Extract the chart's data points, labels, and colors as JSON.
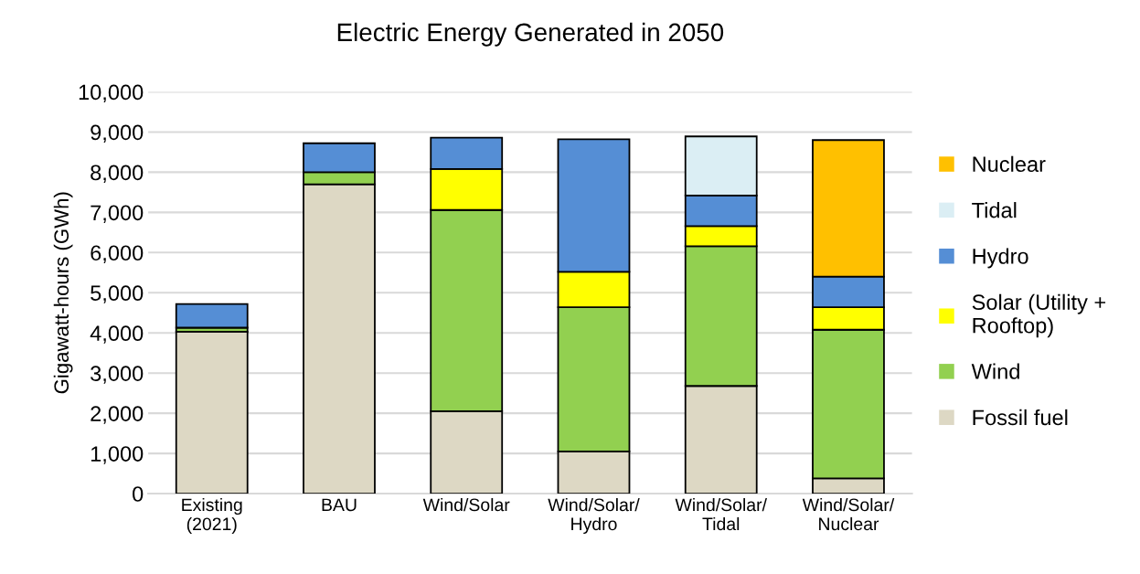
{
  "chart_data": {
    "type": "bar",
    "stacked": true,
    "title": "Electric Energy Generated in 2050",
    "ylabel": "Gigawatt-hours (GWh)",
    "categories": [
      "Existing\n(2021)",
      "BAU",
      "Wind/Solar",
      "Wind/Solar/\nHydro",
      "Wind/Solar/\nTidal",
      "Wind/Solar/\nNuclear"
    ],
    "series": [
      {
        "name": "Fossil fuel",
        "color": "#ddd8c4",
        "values": [
          4030,
          7700,
          2050,
          1050,
          2680,
          380
        ]
      },
      {
        "name": "Wind",
        "color": "#92d050",
        "values": [
          100,
          300,
          5010,
          3590,
          3480,
          3700
        ]
      },
      {
        "name": "Solar (Utility +\nRooftop)",
        "color": "#ffff00",
        "values": [
          null,
          null,
          1020,
          880,
          500,
          560
        ]
      },
      {
        "name": "Hydro",
        "color": "#558ed5",
        "values": [
          590,
          720,
          780,
          3300,
          760,
          760
        ]
      },
      {
        "name": "Tidal",
        "color": "#dbeef4",
        "values": [
          null,
          null,
          null,
          null,
          1470,
          null
        ]
      },
      {
        "name": "Nuclear",
        "color": "#ffc000",
        "values": [
          null,
          null,
          null,
          null,
          null,
          3400
        ]
      }
    ],
    "ylim": [
      0,
      10000
    ],
    "yticks": [
      {
        "value": 0,
        "label": "0"
      },
      {
        "value": 1000,
        "label": "1,000"
      },
      {
        "value": 2000,
        "label": "2,000"
      },
      {
        "value": 3000,
        "label": "3,000"
      },
      {
        "value": 4000,
        "label": "4,000"
      },
      {
        "value": 5000,
        "label": "5,000"
      },
      {
        "value": 6000,
        "label": "6,000"
      },
      {
        "value": 7000,
        "label": "7,000"
      },
      {
        "value": 8000,
        "label": "8,000"
      },
      {
        "value": 9000,
        "label": "9,000"
      },
      {
        "value": 10000,
        "label": "10,000"
      }
    ],
    "grid": "y",
    "legend": "right"
  }
}
